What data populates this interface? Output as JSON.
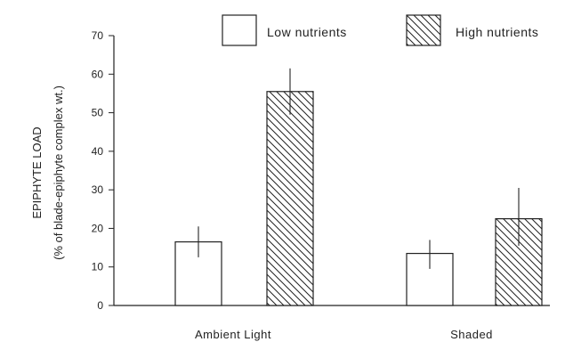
{
  "chart_data": {
    "type": "bar",
    "categories": [
      "Ambient Light",
      "Shaded"
    ],
    "series": [
      {
        "name": "Low nutrients",
        "pattern": "none",
        "fill": "#ffffff",
        "values": [
          16.5,
          13.5
        ],
        "error_low": [
          12.5,
          9.5
        ],
        "error_high": [
          20.5,
          17.0
        ]
      },
      {
        "name": "High nutrients",
        "pattern": "diagonal-hatch",
        "fill": "#ffffff",
        "values": [
          55.5,
          22.5
        ],
        "error_low": [
          49.5,
          15.5
        ],
        "error_high": [
          61.5,
          30.5
        ]
      }
    ],
    "ylim": [
      0,
      70
    ],
    "yticks": [
      "0",
      "10",
      "20",
      "30",
      "40",
      "50",
      "60",
      "70"
    ],
    "ylabel_line1": "EPIPHYTE LOAD",
    "ylabel_line2": "(% of blade-epiphyte complex wt.)",
    "xlabel": "",
    "grid": false,
    "legend_position": "top-right"
  }
}
